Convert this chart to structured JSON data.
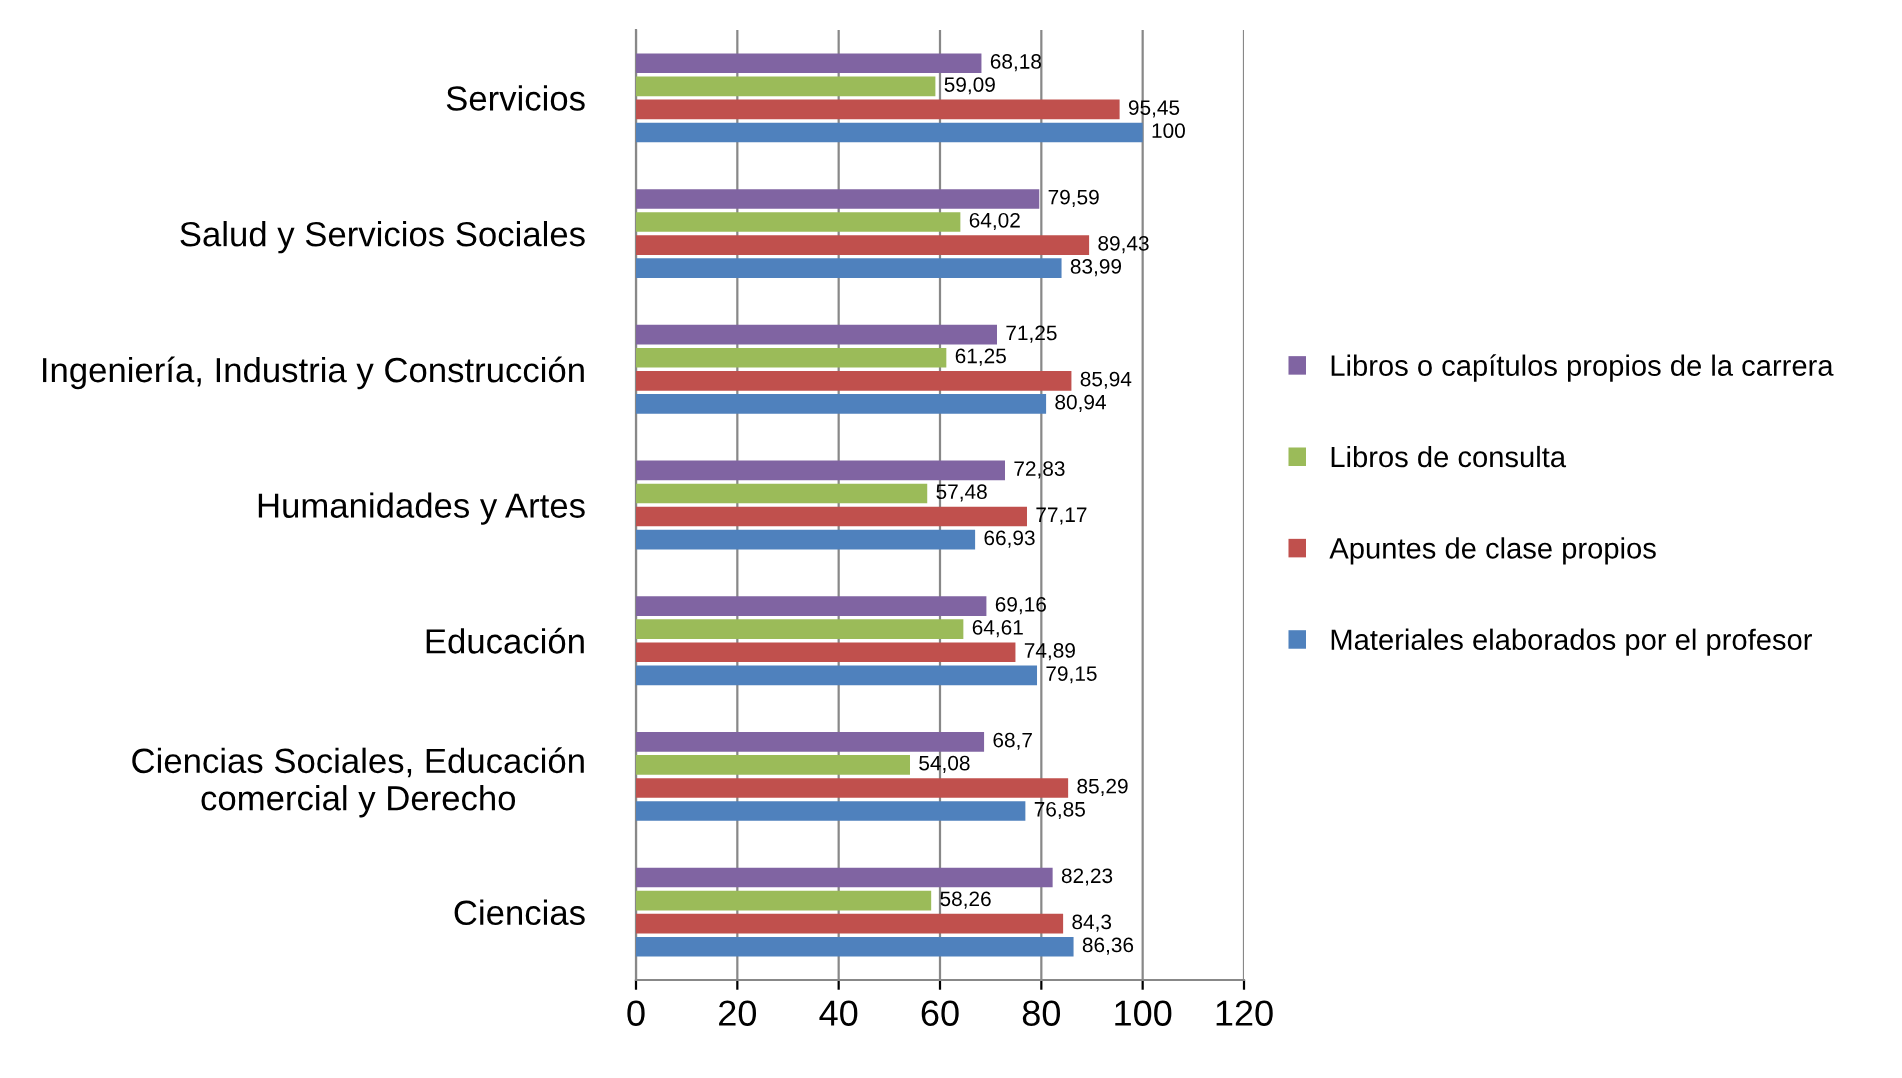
{
  "chart_data": {
    "type": "bar",
    "orientation": "horizontal",
    "categories": [
      "Servicios",
      "Salud y Servicios Sociales",
      "Ingeniería, Industria y Construcción",
      "Humanidades y Artes",
      "Educación",
      "Ciencias Sociales, Educación\ncomercial y Derecho",
      "Ciencias"
    ],
    "series": [
      {
        "name": "Libros o capítulos propios de la carrera",
        "color": "#8064a2",
        "values": [
          68.18,
          79.59,
          71.25,
          72.83,
          69.16,
          68.7,
          82.23
        ],
        "value_labels": [
          "68,18",
          "79,59",
          "71,25",
          "72,83",
          "69,16",
          "68,7",
          "82,23"
        ]
      },
      {
        "name": "Libros de consulta",
        "color": "#9bbb59",
        "values": [
          59.09,
          64.02,
          61.25,
          57.48,
          64.61,
          54.08,
          58.26
        ],
        "value_labels": [
          "59,09",
          "64,02",
          "61,25",
          "57,48",
          "64,61",
          "54,08",
          "58,26"
        ]
      },
      {
        "name": "Apuntes de clase propios",
        "color": "#c0504d",
        "values": [
          95.45,
          89.43,
          85.94,
          77.17,
          74.89,
          85.29,
          84.3
        ],
        "value_labels": [
          "95,45",
          "89,43",
          "85,94",
          "77,17",
          "74,89",
          "85,29",
          "84,3"
        ]
      },
      {
        "name": "Materiales elaborados por el profesor",
        "color": "#4f81bd",
        "values": [
          100,
          83.99,
          80.94,
          66.93,
          79.15,
          76.85,
          86.36
        ],
        "value_labels": [
          "100",
          "83,99",
          "80,94",
          "66,93",
          "79,15",
          "76,85",
          "86,36"
        ]
      }
    ],
    "xlim": [
      0,
      120
    ],
    "xticks": [
      0,
      20,
      40,
      60,
      80,
      100,
      120
    ],
    "grid": "x",
    "legend": "right"
  }
}
